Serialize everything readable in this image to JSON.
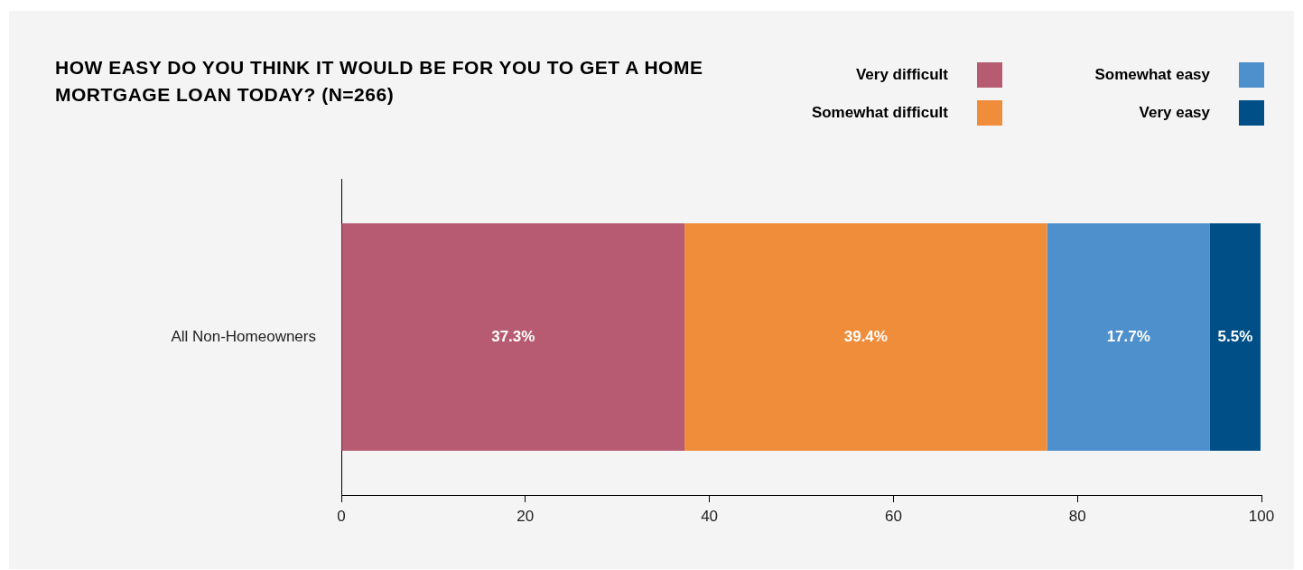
{
  "chart_data": {
    "type": "bar",
    "orientation": "horizontal",
    "stacked": true,
    "title": "HOW EASY DO YOU THINK IT WOULD BE FOR YOU TO GET A HOME MORTGAGE LOAN TODAY? (N=266)",
    "categories": [
      "All Non-Homeowners"
    ],
    "series": [
      {
        "name": "Very difficult",
        "color": "#b75b72",
        "values": [
          37.3
        ],
        "value_labels": [
          "37.3%"
        ]
      },
      {
        "name": "Somewhat difficult",
        "color": "#ef8d3b",
        "values": [
          39.4
        ],
        "value_labels": [
          "39.4%"
        ]
      },
      {
        "name": "Somewhat easy",
        "color": "#4e90cc",
        "values": [
          17.7
        ],
        "value_labels": [
          "17.7%"
        ]
      },
      {
        "name": "Very easy",
        "color": "#005087",
        "values": [
          5.5
        ],
        "value_labels": [
          "5.5%"
        ]
      }
    ],
    "xlim": [
      0,
      100
    ],
    "xticks": [
      0,
      20,
      40,
      60,
      80,
      100
    ],
    "grid": false,
    "legend": "top right"
  }
}
